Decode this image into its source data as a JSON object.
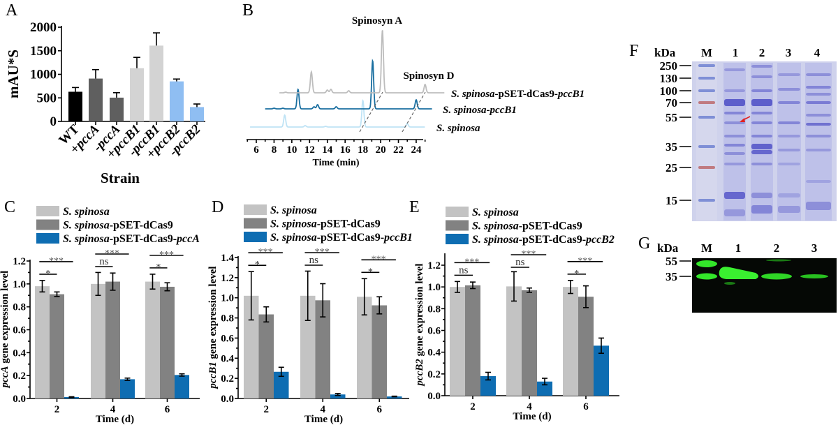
{
  "panels": {
    "A": "A",
    "B": "B",
    "C": "C",
    "D": "D",
    "E": "E",
    "F": "F",
    "G": "G"
  },
  "chart_data": [
    {
      "id": "A",
      "type": "bar",
      "ylabel": "mAU*S",
      "xlabel": "Strain",
      "ylim": [
        0,
        2000
      ],
      "yticks": [
        0,
        500,
        1000,
        1500,
        2000
      ],
      "categories": [
        "WT",
        "+pccA",
        "-pccA",
        "+pccB1",
        "-pccB1",
        "+pccB2",
        "-pccB2"
      ],
      "values": [
        630,
        910,
        505,
        1130,
        1610,
        850,
        305
      ],
      "errors": [
        90,
        190,
        105,
        230,
        270,
        50,
        65
      ],
      "colors": [
        "#000000",
        "#5f5f5f",
        "#5f5f5f",
        "#d3d3d3",
        "#d3d3d3",
        "#8fbef2",
        "#8fbef2"
      ]
    },
    {
      "id": "B",
      "type": "line",
      "xlabel": "Time (min)",
      "xticks": [
        6,
        8,
        10,
        12,
        14,
        16,
        18,
        20,
        22,
        24
      ],
      "annotations": [
        "Spinosyn A",
        "Spinosyn D"
      ],
      "series": [
        {
          "name": "S. spinosa",
          "color": "#bfe3f5",
          "range": [
            5.3,
            25
          ],
          "peaks": [
            [
              9.2,
              17
            ],
            [
              11.5,
              2
            ],
            [
              13.8,
              1
            ],
            [
              18,
              38
            ],
            [
              23,
              5
            ]
          ]
        },
        {
          "name": "S. spinosa-pccB1",
          "color": "#1a6fa0",
          "range": [
            7,
            25.8
          ],
          "peaks": [
            [
              8,
              1
            ],
            [
              9,
              1
            ],
            [
              10.7,
              28
            ],
            [
              12.5,
              3
            ],
            [
              12.9,
              6
            ],
            [
              15,
              3
            ],
            [
              19.1,
              69
            ],
            [
              24,
              13
            ]
          ]
        },
        {
          "name": "S. spinosa-pSET-dCas9-pccB1",
          "color": "#bdbdbd",
          "range": [
            8.6,
            27.2
          ],
          "peaks": [
            [
              9.3,
              1
            ],
            [
              12.2,
              30
            ],
            [
              14,
              4
            ],
            [
              14.4,
              5
            ],
            [
              16.4,
              3
            ],
            [
              20.2,
              90
            ],
            [
              25,
              12
            ]
          ]
        }
      ]
    },
    {
      "id": "C",
      "type": "bar",
      "ylabel": "pccA gene expression level",
      "xlabel": "Time (d)",
      "ylim": [
        0,
        1.2
      ],
      "yticks": [
        0.0,
        0.2,
        0.4,
        0.6,
        0.8,
        1.0,
        1.2
      ],
      "categories": [
        "2",
        "4",
        "6"
      ],
      "series": [
        {
          "name": "S. spinosa",
          "color": "#c3c3c3",
          "values": [
            0.98,
            1.0,
            1.02
          ],
          "errors": [
            0.05,
            0.1,
            0.065
          ]
        },
        {
          "name": "S. spinosa-pSET-dCas9",
          "color": "#828282",
          "values": [
            0.91,
            1.02,
            0.975
          ],
          "errors": [
            0.02,
            0.075,
            0.035
          ]
        },
        {
          "name": "S. spinosa-pSET-dCas9-pccA",
          "color": "#0e6db2",
          "values": [
            0.012,
            0.168,
            0.205
          ],
          "errors": [
            0.003,
            0.01,
            0.01
          ]
        }
      ],
      "significance": [
        [
          "*",
          "***"
        ],
        [
          "ns",
          "***"
        ],
        [
          "*",
          "***"
        ]
      ]
    },
    {
      "id": "D",
      "type": "bar",
      "ylabel": "pccB1 gene expression level",
      "xlabel": "Time (d)",
      "ylim": [
        0,
        1.4
      ],
      "yticks": [
        0.0,
        0.2,
        0.4,
        0.6,
        0.8,
        1.0,
        1.2,
        1.4
      ],
      "categories": [
        "2",
        "4",
        "6"
      ],
      "series": [
        {
          "name": "S. spinosa",
          "color": "#c3c3c3",
          "values": [
            1.02,
            1.02,
            1.01
          ],
          "errors": [
            0.24,
            0.245,
            0.18
          ]
        },
        {
          "name": "S. spinosa-pSET-dCas9",
          "color": "#828282",
          "values": [
            0.835,
            0.975,
            0.925
          ],
          "errors": [
            0.075,
            0.165,
            0.085
          ]
        },
        {
          "name": "S. spinosa-pSET-dCas9-pccB1",
          "color": "#0e6db2",
          "values": [
            0.265,
            0.04,
            0.02
          ],
          "errors": [
            0.045,
            0.01,
            0.003
          ]
        }
      ],
      "significance": [
        [
          "*",
          "***"
        ],
        [
          "ns",
          "***"
        ],
        [
          "*",
          "***"
        ]
      ]
    },
    {
      "id": "E",
      "type": "bar",
      "ylabel": "pccB2 gene expression level",
      "xlabel": "Time (d)",
      "ylim": [
        0,
        1.3
      ],
      "yticks": [
        0.0,
        0.2,
        0.4,
        0.6,
        0.8,
        1.0,
        1.2
      ],
      "categories": [
        "2",
        "4",
        "6"
      ],
      "series": [
        {
          "name": "S. spinosa",
          "color": "#c3c3c3",
          "values": [
            1.0,
            1.005,
            1.0
          ],
          "errors": [
            0.05,
            0.135,
            0.06
          ]
        },
        {
          "name": "S. spinosa-pSET-dCas9",
          "color": "#828282",
          "values": [
            1.015,
            0.97,
            0.91
          ],
          "errors": [
            0.03,
            0.02,
            0.1
          ]
        },
        {
          "name": "S. spinosa-pSET-dCas9-pccB2",
          "color": "#0e6db2",
          "values": [
            0.18,
            0.13,
            0.46
          ],
          "errors": [
            0.035,
            0.03,
            0.07
          ]
        }
      ],
      "significance": [
        [
          "ns",
          "***"
        ],
        [
          "ns",
          "***"
        ],
        [
          "*",
          "***"
        ]
      ]
    }
  ],
  "gel_F": {
    "unit": "kDa",
    "lanes": [
      "M",
      "1",
      "2",
      "3",
      "4"
    ],
    "markers": [
      "250",
      "130",
      "100",
      "70",
      "55",
      "35",
      "25",
      "15"
    ]
  },
  "blot_G": {
    "unit": "kDa",
    "lanes": [
      "M",
      "1",
      "2",
      "3"
    ],
    "markers": [
      "55",
      "35"
    ]
  }
}
